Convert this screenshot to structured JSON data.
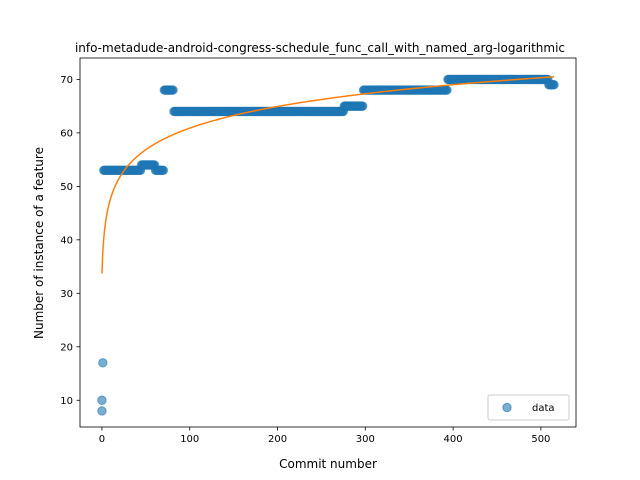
{
  "chart_data": {
    "type": "scatter",
    "title": "info-metadude-android-congress-schedule_func_call_with_named_arg-logarithmic",
    "xlabel": "Commit number",
    "ylabel": "Number of instance of a feature",
    "xlim": [
      -25,
      540
    ],
    "ylim": [
      5,
      74
    ],
    "xticks": [
      0,
      100,
      200,
      300,
      400,
      500
    ],
    "yticks": [
      10,
      20,
      30,
      40,
      50,
      60,
      70
    ],
    "grid": false,
    "legend": {
      "position": "bottom-right",
      "entries": [
        "data"
      ]
    },
    "colors": {
      "data": "#1f77b4",
      "fit": "#ff7f0e"
    },
    "series": [
      {
        "name": "data",
        "kind": "scatter",
        "points": [
          [
            0,
            8
          ],
          [
            0,
            10
          ],
          [
            1,
            17
          ],
          [
            2,
            53
          ],
          [
            36,
            53
          ],
          [
            44,
            53
          ],
          [
            45,
            54
          ],
          [
            60,
            54
          ],
          [
            61,
            53
          ],
          [
            70,
            53
          ],
          [
            71,
            68
          ],
          [
            81,
            68
          ],
          [
            82,
            64
          ],
          [
            275,
            64
          ],
          [
            276,
            65
          ],
          [
            297,
            65
          ],
          [
            298,
            68
          ],
          [
            393,
            68
          ],
          [
            394,
            70
          ],
          [
            508,
            70
          ],
          [
            509,
            69
          ],
          [
            515,
            69
          ]
        ],
        "segments": [
          [
            2,
            36,
            53
          ],
          [
            37,
            44,
            53
          ],
          [
            45,
            60,
            54
          ],
          [
            61,
            70,
            53
          ],
          [
            71,
            81,
            68
          ],
          [
            82,
            275,
            64
          ],
          [
            276,
            297,
            65
          ],
          [
            298,
            393,
            68
          ],
          [
            394,
            508,
            70
          ],
          [
            509,
            515,
            69
          ]
        ]
      },
      {
        "kind": "line",
        "fit": "logarithmic",
        "a": 33.7,
        "b": 5.89,
        "x_range": [
          0,
          515
        ]
      }
    ]
  }
}
